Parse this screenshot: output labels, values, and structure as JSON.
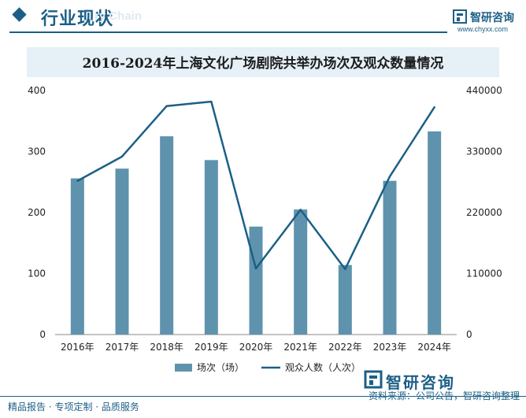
{
  "header": {
    "section_title": "行业现状",
    "brand_ghost": "ry Chain",
    "logo_name": "智研咨询",
    "logo_url": "www.chyxx.com"
  },
  "chart_data": {
    "type": "bar+line",
    "title": "2016-2024年上海文化广场剧院共举办场次及观众数量情况",
    "categories": [
      "2016年",
      "2017年",
      "2018年",
      "2019年",
      "2020年",
      "2021年",
      "2022年",
      "2023年",
      "2024年"
    ],
    "series": [
      {
        "name": "场次（场）",
        "type": "bar",
        "axis": "left",
        "color": "#5f93ad",
        "values": [
          256,
          272,
          325,
          286,
          177,
          205,
          114,
          252,
          333
        ]
      },
      {
        "name": "观众人数（人次）",
        "type": "line",
        "axis": "right",
        "color": "#1c5f86",
        "values": [
          277000,
          321000,
          412000,
          420000,
          119000,
          225000,
          118000,
          285000,
          410000
        ]
      }
    ],
    "y_left": {
      "min": 0,
      "max": 400,
      "ticks": [
        0,
        100,
        200,
        300,
        400
      ]
    },
    "y_right": {
      "min": 0,
      "max": 440000,
      "ticks": [
        "0",
        "110000",
        "220000",
        "330000",
        "440000"
      ]
    },
    "grid": false,
    "legend_position": "bottom"
  },
  "footer": {
    "left": "精品报告 · 专项定制 · 品质服务",
    "source": "资料来源：公司公告，智研咨询整理",
    "logo": "智研咨询"
  }
}
